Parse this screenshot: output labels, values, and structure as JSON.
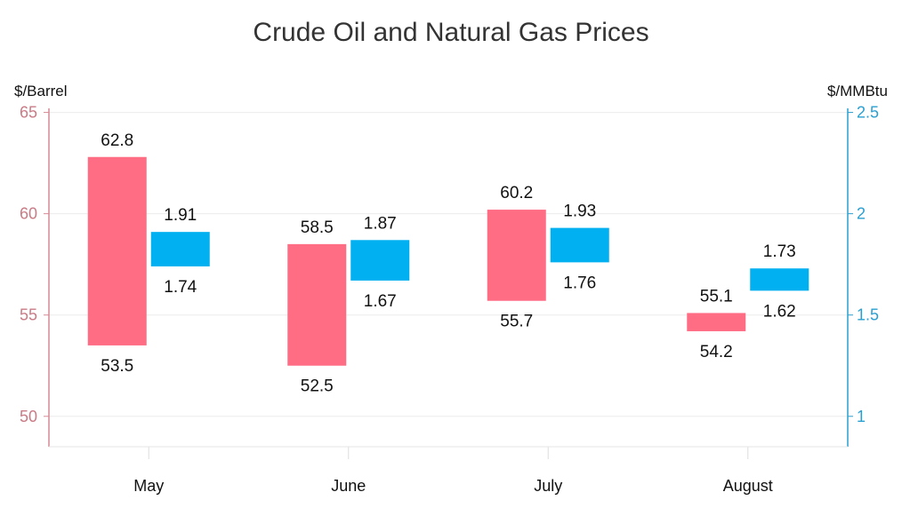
{
  "chart_data": {
    "type": "bar",
    "subtype": "range-column",
    "title": "Crude Oil and Natural Gas Prices",
    "categories": [
      "May",
      "June",
      "July",
      "August"
    ],
    "y_left": {
      "label": "$/Barrel",
      "ylim": [
        48.5,
        65.2
      ],
      "ticks": [
        50,
        55,
        60,
        65
      ],
      "tick_labels": [
        "50",
        "55",
        "60",
        "65"
      ],
      "color": "#c97b86"
    },
    "y_right": {
      "label": "$/MMBtu",
      "ylim": [
        0.85,
        2.52
      ],
      "ticks": [
        1,
        1.5,
        2,
        2.5
      ],
      "tick_labels": [
        "1",
        "1.5",
        "2",
        "2.5"
      ],
      "color": "#2a9fd1"
    },
    "series": [
      {
        "axis": "left",
        "color": "#ff6d85",
        "low": [
          53.5,
          52.5,
          55.7,
          54.2
        ],
        "high": [
          62.8,
          58.5,
          60.2,
          55.1
        ],
        "low_labels": [
          "53.5",
          "52.5",
          "55.7",
          "54.2"
        ],
        "high_labels": [
          "62.8",
          "58.5",
          "60.2",
          "55.1"
        ]
      },
      {
        "axis": "right",
        "color": "#00b0f0",
        "low": [
          1.74,
          1.67,
          1.76,
          1.62
        ],
        "high": [
          1.91,
          1.87,
          1.93,
          1.73
        ],
        "low_labels": [
          "1.74",
          "1.67",
          "1.76",
          "1.62"
        ],
        "high_labels": [
          "1.91",
          "1.87",
          "1.93",
          "1.73"
        ]
      }
    ],
    "grid": true,
    "legend": "none"
  }
}
